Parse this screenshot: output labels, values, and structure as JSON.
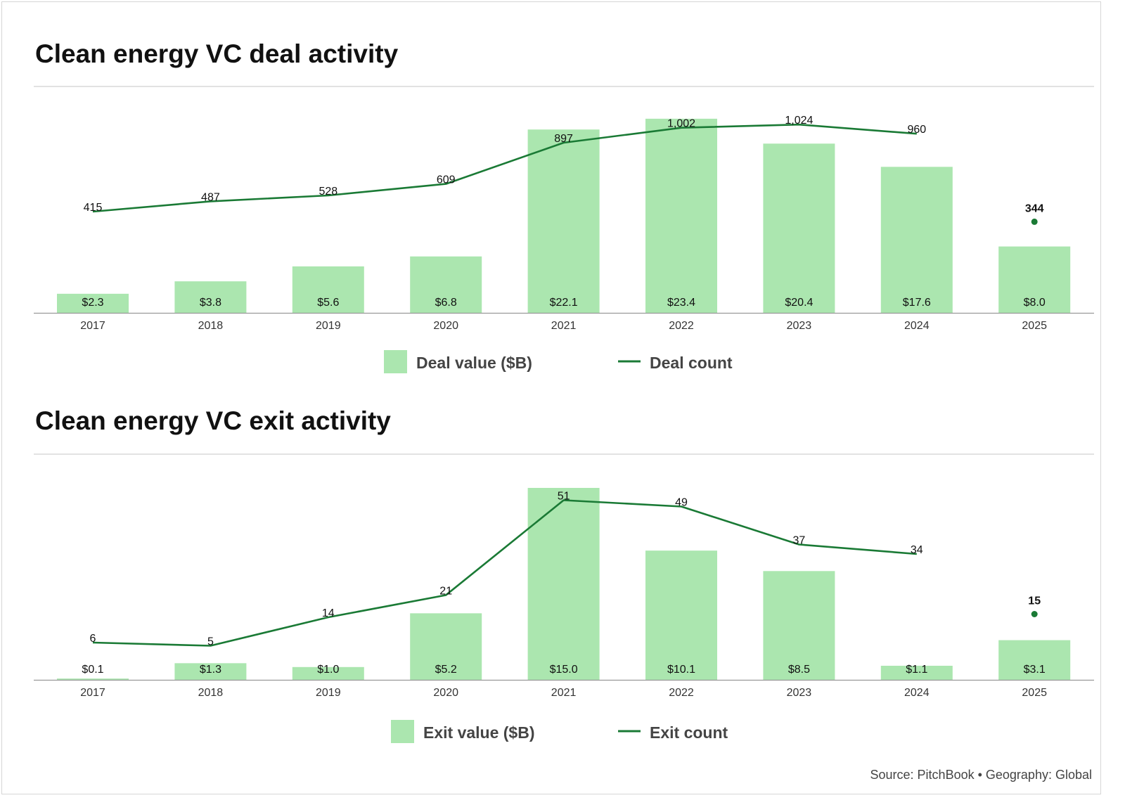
{
  "colors": {
    "bar": "#abe6af",
    "line": "#1a7a35",
    "axis": "#999999",
    "divider": "#d9d9d9"
  },
  "source": "Source: PitchBook • Geography: Global",
  "chart_data": [
    {
      "type": "bar",
      "title": "Clean energy VC deal activity",
      "categories": [
        "2017",
        "2018",
        "2019",
        "2020",
        "2021",
        "2022",
        "2023",
        "2024",
        "2025"
      ],
      "series": [
        {
          "name": "Deal value ($B)",
          "type": "bar",
          "values": [
            2.3,
            3.8,
            5.6,
            6.8,
            22.1,
            23.4,
            20.4,
            17.6,
            8.0
          ],
          "labels": [
            "$2.3",
            "$3.8",
            "$5.6",
            "$6.8",
            "$22.1",
            "$23.4",
            "$20.4",
            "$17.6",
            "$8.0"
          ]
        },
        {
          "name": "Deal count",
          "type": "line",
          "values": [
            415,
            487,
            528,
            609,
            897,
            1002,
            1024,
            960,
            344
          ],
          "labels": [
            "415",
            "487",
            "528",
            "609",
            "897",
            "1,002",
            "1,024",
            "960",
            "344"
          ]
        }
      ],
      "legend": "bottom"
    },
    {
      "type": "bar",
      "title": "Clean energy VC exit activity",
      "categories": [
        "2017",
        "2018",
        "2019",
        "2020",
        "2021",
        "2022",
        "2023",
        "2024",
        "2025"
      ],
      "series": [
        {
          "name": "Exit value ($B)",
          "type": "bar",
          "values": [
            0.1,
            1.3,
            1.0,
            5.2,
            15.0,
            10.1,
            8.5,
            1.1,
            3.1
          ],
          "labels": [
            "$0.1",
            "$1.3",
            "$1.0",
            "$5.2",
            "$15.0",
            "$10.1",
            "$8.5",
            "$1.1",
            "$3.1"
          ]
        },
        {
          "name": "Exit count",
          "type": "line",
          "values": [
            6,
            5,
            14,
            21,
            51,
            49,
            37,
            34,
            15
          ],
          "labels": [
            "6",
            "5",
            "14",
            "21",
            "51",
            "49",
            "37",
            "34",
            "15"
          ]
        }
      ],
      "legend": "bottom"
    }
  ]
}
